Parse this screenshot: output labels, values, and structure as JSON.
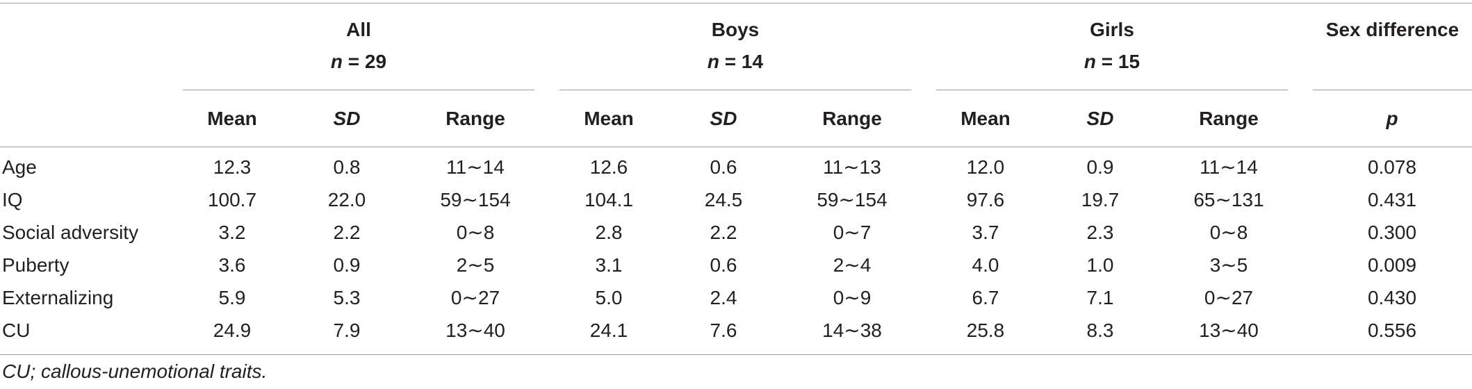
{
  "table": {
    "groups": [
      {
        "title": "All",
        "n_label": "n",
        "n_value": "= 29"
      },
      {
        "title": "Boys",
        "n_label": "n",
        "n_value": "= 14"
      },
      {
        "title": "Girls",
        "n_label": "n",
        "n_value": "= 15"
      },
      {
        "title": "Sex difference"
      }
    ],
    "subheaders": [
      "Mean",
      "SD",
      "Range",
      "Mean",
      "SD",
      "Range",
      "Mean",
      "SD",
      "Range",
      "p"
    ],
    "rows": [
      {
        "label": "Age",
        "cells": [
          "12.3",
          "0.8",
          "11∼14",
          "12.6",
          "0.6",
          "11∼13",
          "12.0",
          "0.9",
          "11∼14",
          "0.078"
        ]
      },
      {
        "label": "IQ",
        "cells": [
          "100.7",
          "22.0",
          "59∼154",
          "104.1",
          "24.5",
          "59∼154",
          "97.6",
          "19.7",
          "65∼131",
          "0.431"
        ]
      },
      {
        "label": "Social adversity",
        "cells": [
          "3.2",
          "2.2",
          "0∼8",
          "2.8",
          "2.2",
          "0∼7",
          "3.7",
          "2.3",
          "0∼8",
          "0.300"
        ]
      },
      {
        "label": "Puberty",
        "cells": [
          "3.6",
          "0.9",
          "2∼5",
          "3.1",
          "0.6",
          "2∼4",
          "4.0",
          "1.0",
          "3∼5",
          "0.009"
        ]
      },
      {
        "label": "Externalizing",
        "cells": [
          "5.9",
          "5.3",
          "0∼27",
          "5.0",
          "2.4",
          "0∼9",
          "6.7",
          "7.1",
          "0∼27",
          "0.430"
        ]
      },
      {
        "label": "CU",
        "cells": [
          "24.9",
          "7.9",
          "13∼40",
          "24.1",
          "7.6",
          "14∼38",
          "25.8",
          "8.3",
          "13∼40",
          "0.556"
        ]
      }
    ],
    "footnote": "CU; callous-unemotional traits."
  }
}
